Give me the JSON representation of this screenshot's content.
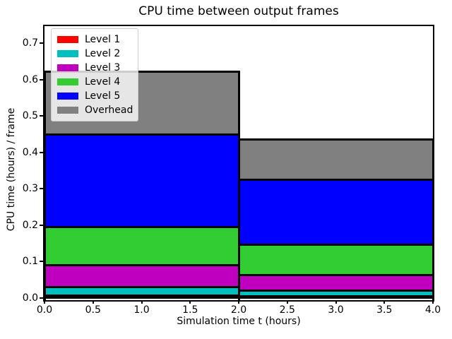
{
  "title": "CPU time between output frames",
  "xlabel": "Simulation time t (hours)",
  "ylabel": "CPU time (hours) / frame",
  "chart_data": {
    "type": "bar",
    "stacked": true,
    "orientation": "vertical",
    "grid": false,
    "legend_position": "upper left",
    "bar_edge_color": "#000000",
    "background_color": "#ffffff",
    "x_edges": [
      0.0,
      2.0,
      4.0
    ],
    "bar_centers": [
      1.0,
      3.0
    ],
    "series": [
      {
        "name": "Level 1",
        "color": "#ff0000",
        "values": [
          0.005,
          0.004
        ]
      },
      {
        "name": "Level 2",
        "color": "#00bfbf",
        "values": [
          0.024,
          0.015
        ]
      },
      {
        "name": "Level 3",
        "color": "#bf00bf",
        "values": [
          0.061,
          0.044
        ]
      },
      {
        "name": "Level 4",
        "color": "#32cd32",
        "values": [
          0.104,
          0.082
        ]
      },
      {
        "name": "Level 5",
        "color": "#0000ff",
        "values": [
          0.254,
          0.18
        ]
      },
      {
        "name": "Overhead",
        "color": "#808080",
        "values": [
          0.174,
          0.109
        ]
      }
    ],
    "bar_totals": [
      0.622,
      0.434
    ],
    "xlim": [
      0.0,
      4.0
    ],
    "ylim": [
      0.0,
      0.75
    ],
    "xticks": [
      0.0,
      0.5,
      1.0,
      1.5,
      2.0,
      2.5,
      3.0,
      3.5,
      4.0
    ],
    "xtick_labels": [
      "0.0",
      "0.5",
      "1.0",
      "1.5",
      "2.0",
      "2.5",
      "3.0",
      "3.5",
      "4.0"
    ],
    "yticks": [
      0.0,
      0.1,
      0.2,
      0.3,
      0.4,
      0.5,
      0.6,
      0.7
    ],
    "ytick_labels": [
      "0.0",
      "0.1",
      "0.2",
      "0.3",
      "0.4",
      "0.5",
      "0.6",
      "0.7"
    ]
  }
}
